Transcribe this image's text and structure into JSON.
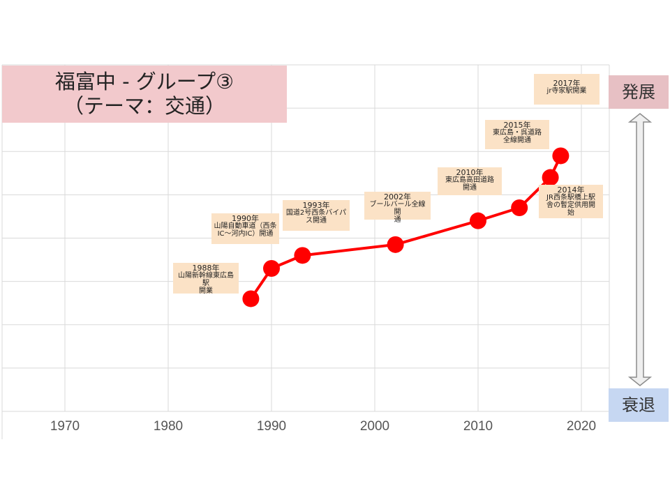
{
  "title": {
    "line1": "福富中 - グループ③",
    "line2": "（テーマ：交通）"
  },
  "side_labels": {
    "top": "発展",
    "bottom": "衰退"
  },
  "chart_data": {
    "type": "line",
    "title": "福富中 - グループ③（テーマ：交通）",
    "xlabel": "",
    "ylabel": "",
    "xlim": [
      1960,
      2025
    ],
    "ylim": [
      0,
      8
    ],
    "x_ticks": [
      1970,
      1980,
      1990,
      2000,
      2010,
      2020
    ],
    "grid": true,
    "series": [
      {
        "color": "#ff0000",
        "points": [
          {
            "x": 1988,
            "y": 2.6
          },
          {
            "x": 1990,
            "y": 3.3
          },
          {
            "x": 1993,
            "y": 3.6
          },
          {
            "x": 2002,
            "y": 3.85
          },
          {
            "x": 2010,
            "y": 4.4
          },
          {
            "x": 2014,
            "y": 4.7
          },
          {
            "x": 2017,
            "y": 5.4
          },
          {
            "x": 2018,
            "y": 5.9
          }
        ]
      }
    ],
    "annotations": [
      {
        "year": "1988年",
        "text": [
          "山陽新幹線東広島駅",
          "開業"
        ]
      },
      {
        "year": "1990年",
        "text": [
          "山陽自動車道（西条",
          "IC〜河内IC）開通"
        ]
      },
      {
        "year": "1993年",
        "text": [
          "国道2号西条バイパ",
          "ス開通"
        ]
      },
      {
        "year": "2002年",
        "text": [
          "ブールバール全線開",
          "通"
        ]
      },
      {
        "year": "2010年",
        "text": [
          "東広島高田道路",
          "開通"
        ]
      },
      {
        "year": "2014年",
        "text": [
          "JR西条駅橋上駅",
          "舎の暫定供用開",
          "始"
        ]
      },
      {
        "year": "2015年",
        "text": [
          "東広島・呉道路",
          "全線開通"
        ]
      },
      {
        "year": "2017年",
        "text": [
          "jr寺家駅開業"
        ]
      }
    ],
    "arrow": {
      "from": "衰退",
      "to": "発展"
    },
    "colors": {
      "line": "#ff0000",
      "grid": "#d9d9d9",
      "annotation_bg": "#fbe2c6",
      "title_bg": "#f2c9cc"
    }
  }
}
